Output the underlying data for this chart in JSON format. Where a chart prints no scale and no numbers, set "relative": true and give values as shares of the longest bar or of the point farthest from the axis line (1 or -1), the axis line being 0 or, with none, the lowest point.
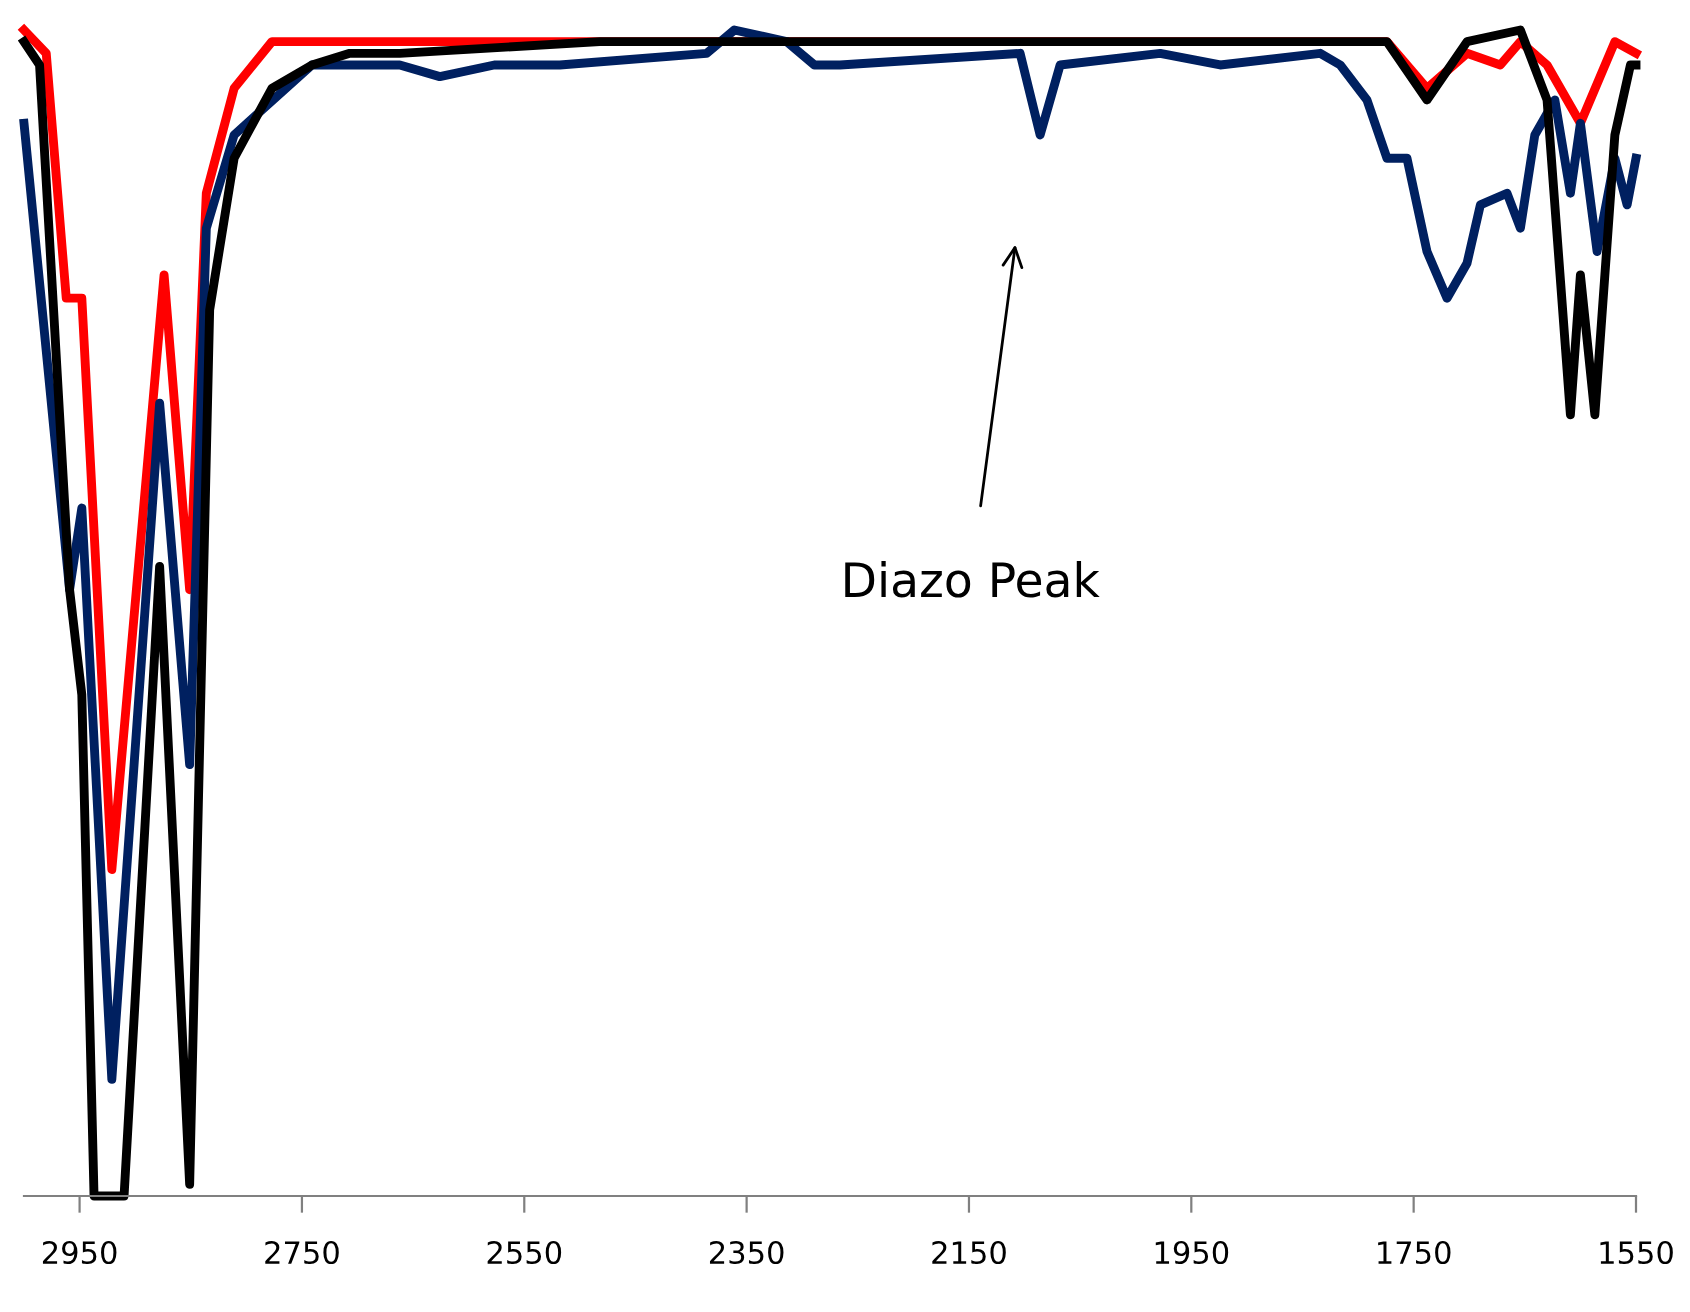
{
  "chart_data": {
    "type": "line",
    "relative": true,
    "xlim": [
      3000,
      1550
    ],
    "xticks": [
      2950,
      2750,
      2550,
      2350,
      2150,
      1950,
      1750,
      1550
    ],
    "grid": false,
    "marker": "none",
    "line_style": "solid",
    "annotations": [
      "Diazo Peak"
    ],
    "series": [
      {
        "color": "#ff0000",
        "x": [
          3000,
          2980,
          2962,
          2948,
          2921,
          2874,
          2851,
          2836,
          2811,
          2777,
          2707,
          2482,
          2302,
          2014,
          1774,
          1738,
          1702,
          1672,
          1654,
          1630,
          1600,
          1569,
          1550
        ],
        "values": [
          1.0,
          0.98,
          0.77,
          0.77,
          0.28,
          0.79,
          0.52,
          0.86,
          0.95,
          0.99,
          0.99,
          0.99,
          0.99,
          0.99,
          0.99,
          0.95,
          0.98,
          0.97,
          0.99,
          0.97,
          0.92,
          0.99,
          0.98
        ]
      },
      {
        "color": "#002060",
        "x": [
          3000,
          2959,
          2948,
          2921,
          2878,
          2851,
          2836,
          2811,
          2741,
          2698,
          2662,
          2626,
          2577,
          2518,
          2386,
          2361,
          2314,
          2289,
          2266,
          2104,
          2086,
          2068,
          1978,
          1924,
          1834,
          1816,
          1792,
          1774,
          1756,
          1738,
          1720,
          1702,
          1690,
          1666,
          1654,
          1641,
          1623,
          1609,
          1600,
          1585,
          1569,
          1558,
          1550
        ],
        "values": [
          0.92,
          0.52,
          0.59,
          0.1,
          0.68,
          0.37,
          0.83,
          0.91,
          0.97,
          0.97,
          0.97,
          0.96,
          0.97,
          0.97,
          0.98,
          1.0,
          0.99,
          0.97,
          0.97,
          0.98,
          0.91,
          0.97,
          0.98,
          0.97,
          0.98,
          0.97,
          0.94,
          0.89,
          0.89,
          0.81,
          0.77,
          0.8,
          0.85,
          0.86,
          0.83,
          0.91,
          0.94,
          0.86,
          0.92,
          0.81,
          0.89,
          0.85,
          0.89
        ]
      },
      {
        "color": "#000000",
        "x": [
          3000,
          2986,
          2959,
          2948,
          2937,
          2923,
          2910,
          2878,
          2851,
          2833,
          2811,
          2777,
          2741,
          2707,
          2662,
          2482,
          2302,
          2122,
          2014,
          1774,
          1738,
          1702,
          1654,
          1630,
          1609,
          1600,
          1587,
          1569,
          1555,
          1550
        ],
        "values": [
          0.99,
          0.97,
          0.52,
          0.43,
          0,
          0,
          0,
          0.54,
          0.01,
          0.76,
          0.89,
          0.95,
          0.97,
          0.98,
          0.98,
          0.99,
          0.99,
          0.99,
          0.99,
          0.99,
          0.94,
          0.99,
          1.0,
          0.94,
          0.67,
          0.79,
          0.67,
          0.91,
          0.97,
          0.97
        ]
      }
    ]
  }
}
